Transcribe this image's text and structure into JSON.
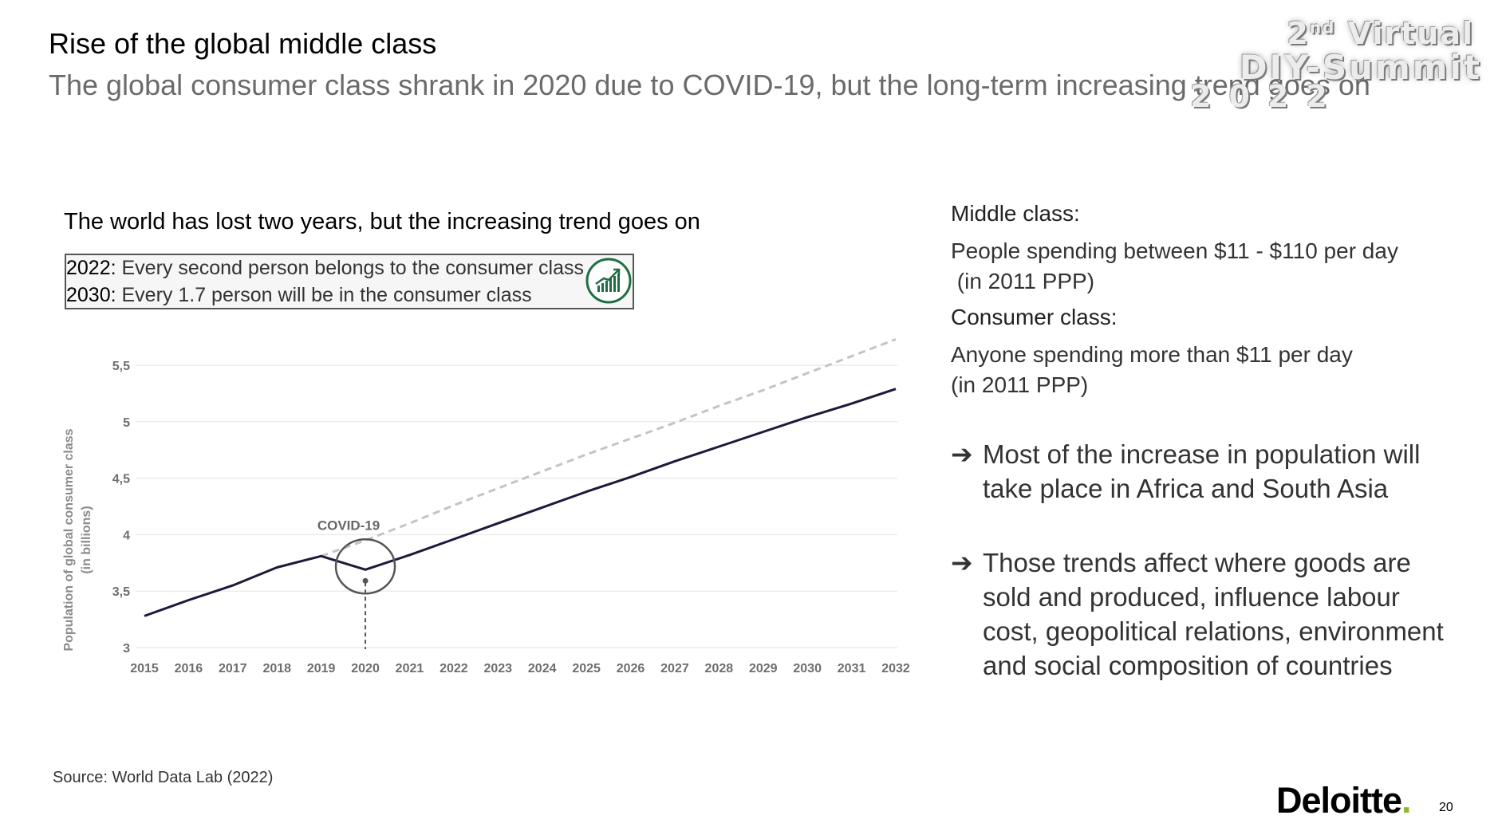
{
  "title": "Rise of the global middle class",
  "subtitle": "The global consumer class shrank in 2020 due to COVID-19, but the long-term increasing trend goes on",
  "logo": {
    "line1": "2",
    "line1_sup": "nd",
    "line1_rest": " Virtual",
    "line2": "DIY-Summit",
    "line3": "2022"
  },
  "chart_heading": "The world has lost two years, but the increasing trend goes on",
  "facts": [
    {
      "year": "2022:",
      "text": " Every second person belongs to the consumer class"
    },
    {
      "year": "2030:",
      "text": " Every 1.7 person will be in the consumer class"
    }
  ],
  "icons": {
    "facts_icon": "growth-chart-icon"
  },
  "chart_data": {
    "type": "line",
    "ylabel": "Population of global consumer class",
    "ylabel_unit": "(in billions)",
    "xlabel": "",
    "x": [
      2015,
      2016,
      2017,
      2018,
      2019,
      2020,
      2021,
      2022,
      2023,
      2024,
      2025,
      2026,
      2027,
      2028,
      2029,
      2030,
      2031,
      2032
    ],
    "yticks": [
      "3",
      "3,5",
      "4",
      "4,5",
      "5",
      "5,5"
    ],
    "ytick_values": [
      3,
      3.5,
      4,
      4.5,
      5,
      5.5
    ],
    "ylim": [
      3,
      5.7
    ],
    "grid": true,
    "annotation": {
      "text": "COVID-19",
      "x": 2020
    },
    "series": [
      {
        "style": "solid",
        "color": "#1c1a3a",
        "values": [
          3.28,
          3.42,
          3.55,
          3.71,
          3.81,
          3.69,
          3.82,
          3.96,
          4.1,
          4.24,
          4.38,
          4.51,
          4.65,
          4.78,
          4.91,
          5.04,
          5.16,
          5.29
        ]
      },
      {
        "style": "dashed",
        "color": "#c4c4c4",
        "values": [
          null,
          null,
          null,
          null,
          3.81,
          3.95,
          4.1,
          4.26,
          4.41,
          4.56,
          4.71,
          4.85,
          4.99,
          5.14,
          5.28,
          5.43,
          5.58,
          5.73
        ]
      }
    ]
  },
  "definitions": [
    {
      "title": "Middle class:",
      "lines": [
        "People spending between $11 - $110 per day",
        " (in 2011 PPP)"
      ]
    },
    {
      "title": "Consumer class:",
      "lines": [
        "Anyone spending more than $11 per day",
        "(in 2011 PPP)"
      ]
    }
  ],
  "bullets": [
    {
      "arrow": "➔",
      "lines": [
        "Most of the increase in population will",
        "take place in Africa and South Asia"
      ]
    },
    {
      "arrow": "➔",
      "lines": [
        "Those trends affect where goods are",
        "sold and produced, influence labour",
        "cost, geopolitical relations, environment",
        "and social composition of countries"
      ]
    }
  ],
  "source": "Source: World Data Lab (2022)",
  "brand": {
    "name": "Deloitte",
    "dot": ".",
    "color": "#86bc25"
  },
  "page_number": "20"
}
